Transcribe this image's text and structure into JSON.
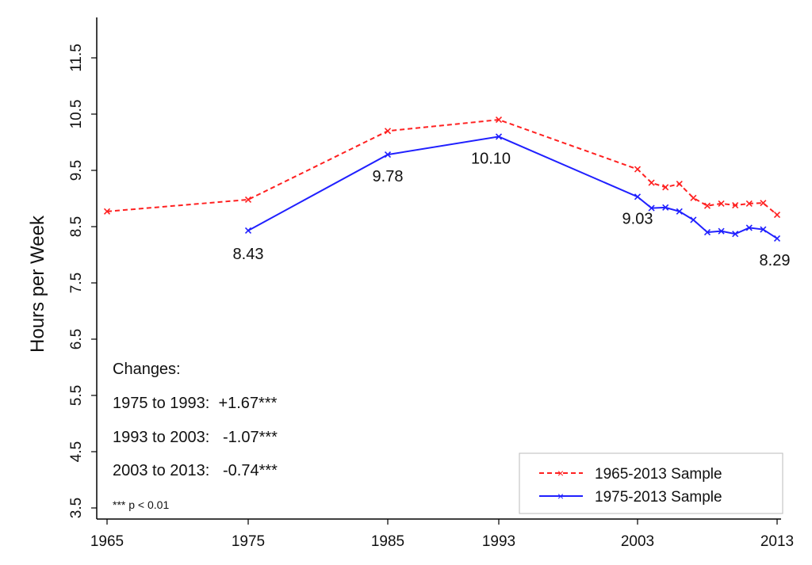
{
  "chart_data": {
    "type": "line",
    "title": "",
    "xlabel": "",
    "ylabel": "Hours per Week",
    "x_ticks": [
      "1965",
      "1975",
      "1985",
      "1993",
      "2003",
      "2013"
    ],
    "y_ticks": [
      "3.5",
      "4.5",
      "5.5",
      "6.5",
      "7.5",
      "8.5",
      "9.5",
      "10.5",
      "11.5"
    ],
    "ylim": [
      3.5,
      12.2
    ],
    "xlim": [
      1965,
      2013
    ],
    "grid": false,
    "legend_position": "bottom-right",
    "series": [
      {
        "name": "1965-2013 Sample",
        "color": "#ff2020",
        "line_style": "dashed",
        "marker": "x",
        "x": [
          1965,
          1975,
          1985,
          1993,
          2003,
          2004,
          2005,
          2006,
          2007,
          2008,
          2009,
          2010,
          2011,
          2012,
          2013
        ],
        "values": [
          8.77,
          8.98,
          10.2,
          10.4,
          9.52,
          9.28,
          9.2,
          9.26,
          9.01,
          8.87,
          8.91,
          8.88,
          8.91,
          8.92,
          8.71
        ]
      },
      {
        "name": "1975-2013 Sample",
        "color": "#2020ff",
        "line_style": "solid",
        "marker": "x",
        "x": [
          1975,
          1985,
          1993,
          2003,
          2004,
          2005,
          2006,
          2007,
          2008,
          2009,
          2010,
          2011,
          2012,
          2013
        ],
        "values": [
          8.43,
          9.78,
          10.1,
          9.03,
          8.83,
          8.84,
          8.77,
          8.62,
          8.4,
          8.42,
          8.37,
          8.48,
          8.45,
          8.29
        ]
      }
    ],
    "data_labels": [
      {
        "text": "8.43",
        "x": 1975,
        "y": 8.43
      },
      {
        "text": "9.78",
        "x": 1985,
        "y": 9.78
      },
      {
        "text": "10.10",
        "x": 1993,
        "y": 10.1
      },
      {
        "text": "9.03",
        "x": 2003,
        "y": 9.03
      },
      {
        "text": "8.29",
        "x": 2013,
        "y": 8.29
      }
    ],
    "annotations": {
      "heading": "Changes:",
      "lines": [
        "1975 to 1993:  +1.67***",
        "1993 to 2003:   -1.07***",
        "2003 to 2013:   -0.74***"
      ],
      "footnote": "*** p < 0.01"
    }
  }
}
